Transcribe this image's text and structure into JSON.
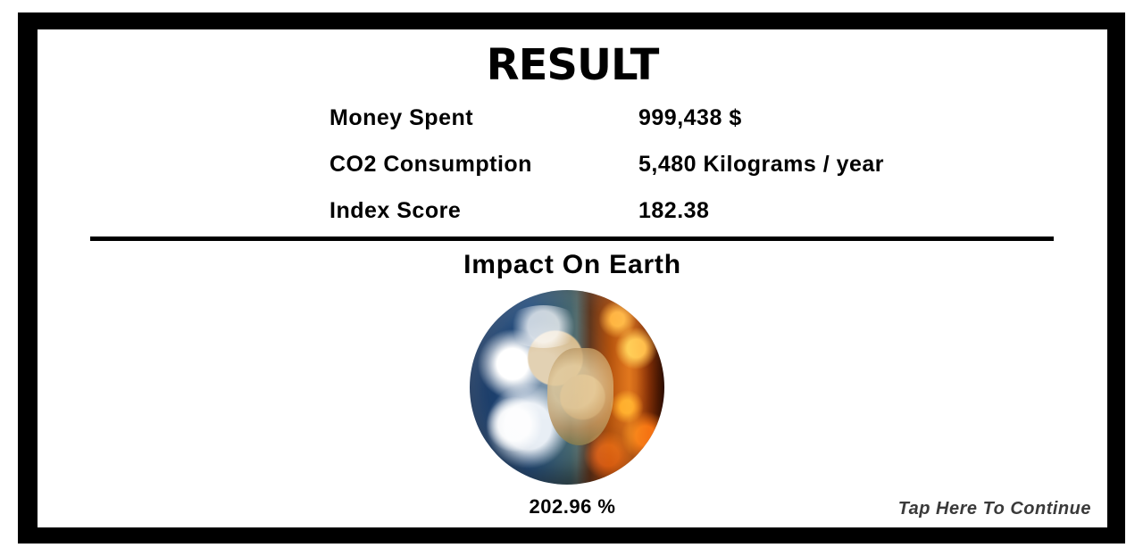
{
  "screen": {
    "title": "RESULT"
  },
  "stats": [
    {
      "label": "Money Spent",
      "value": "999,438 $"
    },
    {
      "label": "CO2 Consumption",
      "value": "5,480 Kilograms / year"
    },
    {
      "label": "Index Score",
      "value": "182.38"
    }
  ],
  "impact": {
    "title": "Impact On Earth",
    "percent": "202.96 %",
    "earth_icon": "burning-earth-icon"
  },
  "continue_label": "Tap Here To Continue",
  "colors": {
    "frame": "#000000",
    "background": "#ffffff",
    "text": "#000000",
    "continue_text": "#3a3a3a"
  }
}
